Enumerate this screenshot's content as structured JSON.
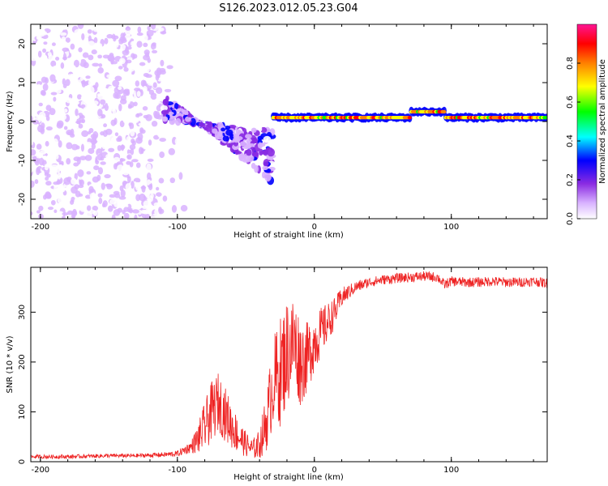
{
  "title": "S126.2023.012.05.23.G04",
  "chart_data": [
    {
      "type": "heatmap",
      "xlabel": "Height of straight line (km)",
      "ylabel": "Frequency (Hz)",
      "xlim": [
        -207,
        170
      ],
      "ylim": [
        -25,
        25
      ],
      "xticks": [
        -200,
        -100,
        0,
        100
      ],
      "yticks": [
        -20,
        -10,
        0,
        10,
        20
      ],
      "colorbar": {
        "label": "Normalized spectral amplitude",
        "range": [
          0,
          1
        ],
        "ticks": [
          0.0,
          0.2,
          0.4,
          0.6,
          0.8
        ],
        "tick_labels": [
          "0.0",
          "0.2",
          "0.4",
          "0.6",
          "0.8"
        ],
        "colormap": [
          "#ffffff",
          "#d9b3ff",
          "#8a2be2",
          "#0000ff",
          "#00ffff",
          "#00ff00",
          "#ffff00",
          "#ff8000",
          "#ff0000",
          "#ff1493"
        ]
      },
      "regions": [
        {
          "description_key": "noise",
          "x_range": [
            -207,
            -110
          ],
          "freq_range": [
            -25,
            25
          ],
          "amplitude": 0.15
        },
        {
          "description_key": "drifting",
          "x_range": [
            -110,
            -30
          ],
          "freq_start": [
            7,
            0
          ],
          "freq_end": [
            -16,
            -2
          ],
          "amplitude": 0.25
        },
        {
          "description_key": "carrier",
          "x_range": [
            -30,
            170
          ],
          "freq": 1,
          "amplitude": 0.85
        }
      ]
    },
    {
      "type": "line",
      "xlabel": "Height of straight line (km)",
      "ylabel": "SNR (10 * v/v)",
      "xlim": [
        -207,
        170
      ],
      "ylim": [
        0,
        390
      ],
      "xticks": [
        -200,
        -100,
        0,
        100
      ],
      "yticks": [
        0,
        100,
        200,
        300
      ],
      "series": [
        {
          "color": "#ee2222",
          "x": [
            -207,
            -180,
            -150,
            -130,
            -110,
            -100,
            -90,
            -85,
            -80,
            -75,
            -70,
            -65,
            -60,
            -55,
            -50,
            -45,
            -40,
            -35,
            -30,
            -25,
            -20,
            -15,
            -10,
            -5,
            0,
            5,
            10,
            15,
            20,
            25,
            30,
            40,
            50,
            60,
            70,
            80,
            90,
            95,
            100,
            110,
            120,
            130,
            140,
            150,
            160,
            170
          ],
          "y": [
            10,
            10,
            12,
            12,
            14,
            16,
            30,
            45,
            70,
            100,
            120,
            95,
            70,
            50,
            35,
            25,
            35,
            80,
            160,
            180,
            220,
            240,
            200,
            210,
            240,
            260,
            280,
            300,
            330,
            340,
            350,
            360,
            365,
            368,
            370,
            372,
            370,
            355,
            362,
            360,
            360,
            362,
            360,
            360,
            362,
            358
          ],
          "noise": [
            4,
            4,
            4,
            4,
            5,
            6,
            12,
            30,
            50,
            60,
            60,
            55,
            45,
            35,
            25,
            20,
            30,
            60,
            90,
            110,
            110,
            100,
            90,
            70,
            60,
            50,
            40,
            30,
            20,
            15,
            12,
            10,
            10,
            10,
            10,
            10,
            10,
            10,
            10,
            10,
            10,
            10,
            10,
            10,
            10,
            10
          ]
        }
      ]
    }
  ]
}
